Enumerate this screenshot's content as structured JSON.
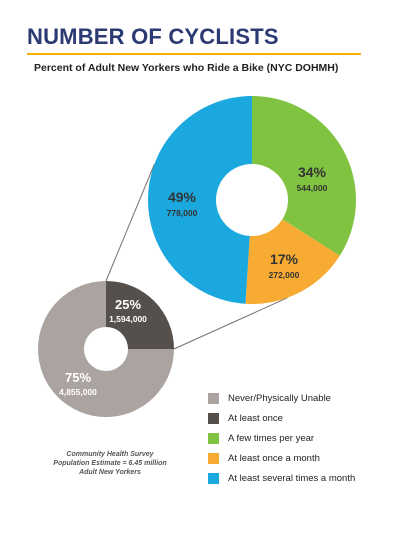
{
  "header": {
    "title": "NUMBER OF CYCLISTS",
    "subtitle": "Percent of Adult New Yorkers who Ride a Bike (NYC DOHMH)"
  },
  "source_note": {
    "line1": "Community Health Survey",
    "line2": "Population Estimate = 6.45 million",
    "line3": "Adult New Yorkers"
  },
  "colors": {
    "never": "#aaa3a0",
    "at_least_once": "#56504d",
    "few_times_year": "#80c341",
    "once_month": "#f7ab32",
    "several_month": "#1aa8de"
  },
  "chart_data": [
    {
      "type": "pie",
      "variant": "donut",
      "categories": [
        "Never/Physically Unable",
        "At least once"
      ],
      "values": [
        75,
        25
      ],
      "percent_labels": [
        "75%",
        "25%"
      ],
      "count_labels": [
        "4,855,000",
        "1,594,000"
      ],
      "colors": [
        "#aaa3a0",
        "#56504d"
      ]
    },
    {
      "type": "pie",
      "variant": "donut",
      "categories": [
        "A few times per year",
        "At least once a month",
        "At least several times a month"
      ],
      "values": [
        34,
        17,
        49
      ],
      "percent_labels": [
        "34%",
        "17%",
        "49%"
      ],
      "count_labels": [
        "544,000",
        "272,000",
        "778,000"
      ],
      "colors": [
        "#80c341",
        "#f7ab32",
        "#1aa8de"
      ]
    }
  ],
  "legend": {
    "items": [
      {
        "label": "Never/Physically Unable",
        "color": "#aaa3a0"
      },
      {
        "label": "At least once",
        "color": "#56504d"
      },
      {
        "label": "A few times per year",
        "color": "#80c341"
      },
      {
        "label": "At least once a month",
        "color": "#f7ab32"
      },
      {
        "label": "At least several times a month",
        "color": "#1aa8de"
      }
    ]
  }
}
